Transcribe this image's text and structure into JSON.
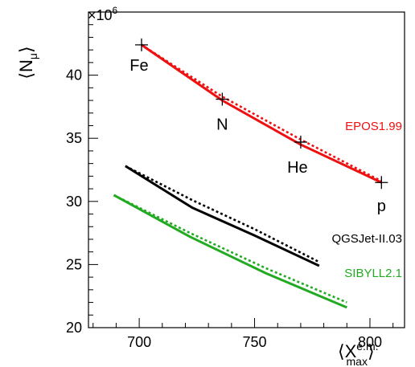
{
  "chart_data": {
    "type": "line",
    "title": "",
    "xlabel_main": "⟨X",
    "xlabel_sup": "e.m.",
    "xlabel_sub": "max",
    "xlabel_close": "⟩",
    "ylabel_main": "⟨N",
    "ylabel_sub": "μ",
    "ylabel_close": "⟩",
    "y_multiplier": "×10",
    "y_multiplier_exp": "6",
    "xlim": [
      678,
      815
    ],
    "ylim": [
      20,
      45
    ],
    "x_ticks": [
      700,
      750,
      800
    ],
    "x_tick_labels": [
      "700",
      "750",
      "800"
    ],
    "y_ticks": [
      20,
      25,
      30,
      35,
      40
    ],
    "y_tick_labels": [
      "20",
      "25",
      "30",
      "35",
      "40"
    ],
    "grid": false,
    "series": [
      {
        "name": "EPOS1.99",
        "color": "#ee1111",
        "style": "solid",
        "x": [
          701,
          736,
          770,
          805
        ],
        "y": [
          42.4,
          38.0,
          34.5,
          31.5
        ]
      },
      {
        "name": "EPOS1.99",
        "color": "#ee1111",
        "style": "dotted",
        "x": [
          701,
          736,
          770,
          805
        ],
        "y": [
          42.4,
          38.3,
          34.9,
          31.6
        ]
      },
      {
        "name": "QGSJet-II.03",
        "color": "#000000",
        "style": "solid",
        "x": [
          694,
          723,
          750,
          778
        ],
        "y": [
          32.8,
          29.5,
          27.3,
          24.9
        ]
      },
      {
        "name": "QGSJet-II.03",
        "color": "#000000",
        "style": "dotted",
        "x": [
          694,
          723,
          750,
          778
        ],
        "y": [
          32.8,
          30.1,
          27.8,
          25.2
        ]
      },
      {
        "name": "SIBYLL2.1",
        "color": "#22aa22",
        "style": "solid",
        "x": [
          689,
          722,
          755,
          790
        ],
        "y": [
          30.5,
          27.2,
          24.3,
          21.6
        ]
      },
      {
        "name": "SIBYLL2.1",
        "color": "#22aa22",
        "style": "dotted",
        "x": [
          689,
          722,
          755,
          790
        ],
        "y": [
          30.5,
          27.5,
          24.7,
          22.0
        ]
      }
    ],
    "markers": [
      {
        "label": "Fe",
        "x": 701,
        "y": 42.4
      },
      {
        "label": "N",
        "x": 736,
        "y": 38.1
      },
      {
        "label": "He",
        "x": 770,
        "y": 34.7
      },
      {
        "label": "p",
        "x": 805,
        "y": 31.5
      }
    ],
    "series_labels": [
      {
        "text": "EPOS1.99",
        "color": "#ee1111"
      },
      {
        "text": "QGSJet-II.03",
        "color": "#000000"
      },
      {
        "text": "SIBYLL2.1",
        "color": "#22aa22"
      }
    ]
  }
}
